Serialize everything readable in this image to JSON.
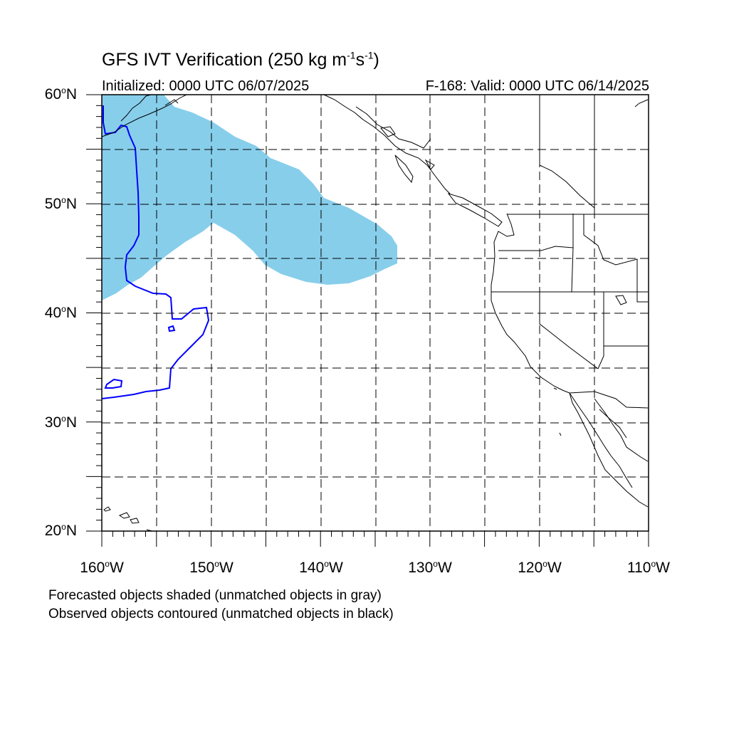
{
  "title": {
    "main": "GFS IVT Verification (250 kg m",
    "sup1": "-1",
    "mid": "s",
    "sup2": "-1",
    "end": ")"
  },
  "initialized": "Initialized: 0000 UTC 06/07/2025",
  "valid": "F-168: Valid: 0000 UTC 06/14/2025",
  "notes": [
    "Forecasted objects shaded (unmatched objects in gray)",
    "Observed objects contoured (unmatched objects in black)"
  ],
  "lat_labels": [
    {
      "num": "60",
      "hem": "N"
    },
    {
      "num": "50",
      "hem": "N"
    },
    {
      "num": "40",
      "hem": "N"
    },
    {
      "num": "30",
      "hem": "N"
    },
    {
      "num": "20",
      "hem": "N"
    }
  ],
  "lon_labels": [
    {
      "num": "160",
      "hem": "W"
    },
    {
      "num": "150",
      "hem": "W"
    },
    {
      "num": "140",
      "hem": "W"
    },
    {
      "num": "130",
      "hem": "W"
    },
    {
      "num": "120",
      "hem": "W"
    },
    {
      "num": "110",
      "hem": "W"
    }
  ],
  "colors": {
    "forecast_fill": "#87CEEB",
    "observed_contour": "#0000FF",
    "coastline": "#000000",
    "grid": "#000000"
  },
  "map": {
    "lon_range": [
      -160,
      -110
    ],
    "lat_range": [
      20,
      60
    ],
    "gridline_lons": [
      -155,
      -150,
      -145,
      -140,
      -135,
      -130,
      -125,
      -120,
      -115
    ],
    "gridline_lats": [
      55,
      50,
      45,
      40,
      35,
      30,
      25
    ],
    "grid_style": "dashed"
  }
}
